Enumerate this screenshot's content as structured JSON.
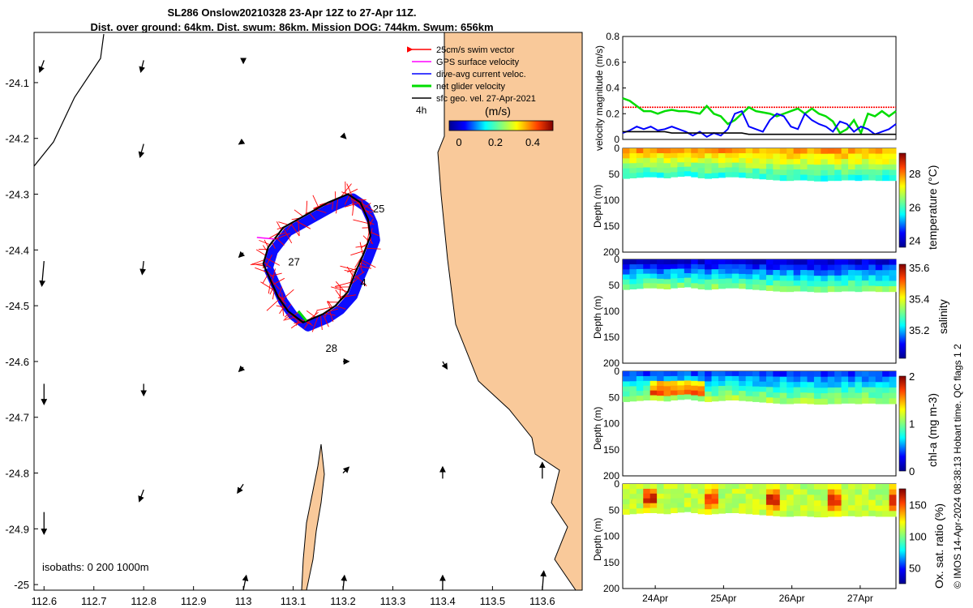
{
  "title_line1": "SL286 Onslow20210328 23-Apr 12Z to 27-Apr 11Z.",
  "title_line2": "Dist. over ground: 64km. Dist. swum: 86km. Mission DOG: 744km. Swum: 656km",
  "colors": {
    "land": "#f9c99a",
    "swim": "#ff0000",
    "gps": "#ff00ff",
    "dive_avg": "#0000ff",
    "net": "#00dd00",
    "geo": "#000000"
  },
  "chart_data": [
    {
      "type": "map",
      "xlim": [
        112.58,
        113.68
      ],
      "ylim": [
        -25.01,
        -24.01
      ],
      "xticks": [
        "112.6",
        "112.7",
        "112.8",
        "112.9",
        "113",
        "113.1",
        "113.2",
        "113.3",
        "113.4",
        "113.5",
        "113.6"
      ],
      "yticks": [
        "-24.1",
        "-24.2",
        "-24.3",
        "-24.4",
        "-24.5",
        "-24.6",
        "-24.7",
        "-24.8",
        "-24.9",
        "-25"
      ],
      "legend": [
        {
          "label": "25cm/s swim vector",
          "color": "#ff0000"
        },
        {
          "label": "GPS surface velocity",
          "color": "#ff00ff"
        },
        {
          "label": "dive-avg current veloc.",
          "color": "#0000ff"
        },
        {
          "label": "net glider velocity",
          "color": "#00dd00"
        },
        {
          "label": "sfc geo. vel. 27-Apr-2021",
          "color": "#000000"
        }
      ],
      "legend_scale_label": "4h",
      "colorbar": {
        "label": "(m/s)",
        "ticks": [
          "0",
          "0.2",
          "0.4"
        ],
        "range": [
          0,
          0.5
        ]
      },
      "isobaths_label": "isobaths: 0   200  1000m",
      "day_labels": [
        {
          "text": "25",
          "lon": 113.26,
          "lat": -24.333
        },
        {
          "text": "27",
          "lon": 113.09,
          "lat": -24.428
        },
        {
          "text": "4",
          "lon": 113.235,
          "lat": -24.465
        },
        {
          "text": "28",
          "lon": 113.165,
          "lat": -24.583
        }
      ],
      "track": [
        [
          113.04,
          -24.425
        ],
        [
          113.05,
          -24.395
        ],
        [
          113.08,
          -24.36
        ],
        [
          113.12,
          -24.34
        ],
        [
          113.17,
          -24.315
        ],
        [
          113.21,
          -24.3
        ],
        [
          113.235,
          -24.315
        ],
        [
          113.25,
          -24.345
        ],
        [
          113.255,
          -24.375
        ],
        [
          113.24,
          -24.41
        ],
        [
          113.225,
          -24.44
        ],
        [
          113.21,
          -24.475
        ],
        [
          113.185,
          -24.5
        ],
        [
          113.16,
          -24.515
        ],
        [
          113.12,
          -24.53
        ],
        [
          113.09,
          -24.51
        ],
        [
          113.07,
          -24.485
        ],
        [
          113.055,
          -24.455
        ],
        [
          113.04,
          -24.425
        ]
      ],
      "geo_vectors": [
        [
          112.6,
          -24.06,
          -0.3,
          -0.8
        ],
        [
          112.8,
          -24.06,
          -0.2,
          -0.8
        ],
        [
          113.0,
          -24.06,
          0,
          -0.2
        ],
        [
          112.8,
          -24.21,
          -0.25,
          -0.9
        ],
        [
          113.0,
          -24.205,
          -0.3,
          -0.2
        ],
        [
          113.2,
          -24.195,
          0.2,
          -0.2
        ],
        [
          112.6,
          -24.42,
          -0.15,
          -1.7
        ],
        [
          112.8,
          -24.42,
          -0.1,
          -0.9
        ],
        [
          113.0,
          -24.405,
          -0.3,
          -0.3
        ],
        [
          112.6,
          -24.64,
          0,
          -1.4
        ],
        [
          112.8,
          -24.64,
          0,
          -0.8
        ],
        [
          113.0,
          -24.61,
          -0.3,
          -0.3
        ],
        [
          113.2,
          -24.6,
          0.4,
          0
        ],
        [
          113.4,
          -24.6,
          0.3,
          -0.5
        ],
        [
          112.6,
          -24.87,
          0,
          -1.5
        ],
        [
          112.8,
          -24.83,
          -0.3,
          -0.8
        ],
        [
          113.0,
          -24.82,
          -0.4,
          -0.6
        ],
        [
          113.2,
          -24.8,
          0.4,
          0.4
        ],
        [
          113.4,
          -24.81,
          0,
          0.8
        ],
        [
          113.6,
          -24.81,
          0,
          1.1
        ],
        [
          113.0,
          -25.01,
          0.2,
          1.0
        ],
        [
          113.2,
          -25.01,
          0.1,
          1.0
        ],
        [
          113.4,
          -25.01,
          0,
          1.0
        ],
        [
          113.6,
          -25.01,
          0.1,
          1.3
        ]
      ]
    },
    {
      "type": "line",
      "ylabel": "velocity magnitude (m/s)",
      "ylim": [
        0,
        0.8
      ],
      "yticks": [
        "0",
        "0.2",
        "0.4",
        "0.6",
        "0.8"
      ],
      "series": [
        {
          "name": "swim",
          "color": "#ff0000",
          "values": [
            0.25,
            0.25,
            0.25,
            0.25,
            0.25,
            0.25,
            0.25,
            0.25,
            0.25,
            0.25,
            0.25,
            0.25,
            0.25,
            0.25,
            0.25,
            0.25,
            0.25,
            0.25,
            0.25,
            0.25,
            0.25,
            0.25,
            0.25,
            0.25,
            0.25,
            0.25,
            0.25,
            0.25,
            0.25,
            0.25,
            0.25,
            0.25,
            0.25,
            0.25,
            0.25,
            0.25,
            0.25,
            0.25,
            0.25,
            0.25
          ]
        },
        {
          "name": "net",
          "color": "#00dd00",
          "values": [
            0.32,
            0.3,
            0.26,
            0.22,
            0.22,
            0.2,
            0.22,
            0.23,
            0.22,
            0.22,
            0.21,
            0.2,
            0.26,
            0.2,
            0.18,
            0.12,
            0.15,
            0.2,
            0.25,
            0.22,
            0.21,
            0.2,
            0.18,
            0.2,
            0.22,
            0.24,
            0.2,
            0.24,
            0.2,
            0.18,
            0.14,
            0.05,
            0.08,
            0.15,
            0.05,
            0.2,
            0.18,
            0.22,
            0.18,
            0.22
          ]
        },
        {
          "name": "dive_avg",
          "color": "#0000ff",
          "values": [
            0.05,
            0.07,
            0.1,
            0.08,
            0.1,
            0.07,
            0.08,
            0.1,
            0.08,
            0.06,
            0.03,
            0.06,
            0.02,
            0.05,
            0.03,
            0.08,
            0.2,
            0.22,
            0.1,
            0.08,
            0.06,
            0.15,
            0.2,
            0.18,
            0.1,
            0.08,
            0.2,
            0.15,
            0.12,
            0.1,
            0.06,
            0.14,
            0.12,
            0.06,
            0.1,
            0.08,
            0.04,
            0.06,
            0.08,
            0.12
          ]
        },
        {
          "name": "gps",
          "color": "#000000",
          "values": [
            0.06,
            0.06,
            0.06,
            0.06,
            0.06,
            0.06,
            0.06,
            0.05,
            0.05,
            0.05,
            0.05,
            0.05,
            0.05,
            0.05,
            0.05,
            0.05,
            0.05,
            0.05,
            0.04,
            0.04,
            0.04,
            0.04,
            0.04,
            0.04,
            0.04,
            0.04,
            0.04,
            0.04,
            0.04,
            0.04,
            0.04,
            0.04,
            0.04,
            0.04,
            0.04,
            0.04,
            0.04,
            0.04,
            0.04,
            0.04
          ]
        }
      ]
    },
    {
      "type": "heatmap",
      "ylabel": "Depth (m)",
      "clabel": "temperature (°C)",
      "ylim": [
        0,
        200
      ],
      "yticks": [
        "0",
        "50",
        "100",
        "150",
        "200"
      ],
      "cticks": [
        "24",
        "26",
        "28"
      ],
      "crange": [
        23.6,
        29.2
      ],
      "mld": [
        58,
        57,
        56,
        55,
        55,
        56,
        57,
        55,
        54,
        53,
        55,
        57,
        58,
        57,
        56,
        55,
        55,
        56,
        57,
        58,
        59,
        60,
        61,
        62,
        62,
        61,
        61,
        62,
        63,
        63,
        62,
        62,
        61,
        61,
        62,
        61,
        61,
        62,
        62,
        62
      ],
      "surface_value": 27.8,
      "bottom_value": 25.8
    },
    {
      "type": "heatmap",
      "ylabel": "Depth (m)",
      "clabel": "salinity",
      "ylim": [
        0,
        200
      ],
      "yticks": [
        "0",
        "50",
        "100",
        "150",
        "200"
      ],
      "cticks": [
        "35.2",
        "35.4",
        "35.6"
      ],
      "crange": [
        35.02,
        35.62
      ],
      "mld": [
        58,
        57,
        56,
        55,
        55,
        56,
        57,
        55,
        54,
        53,
        55,
        57,
        58,
        57,
        56,
        55,
        55,
        56,
        57,
        58,
        59,
        60,
        61,
        62,
        62,
        61,
        61,
        62,
        63,
        63,
        62,
        62,
        61,
        61,
        62,
        61,
        61,
        62,
        62,
        62
      ],
      "surface_value": 35.08,
      "bottom_value": 35.32
    },
    {
      "type": "heatmap",
      "ylabel": "Depth (m)",
      "clabel": "chl-a (mg m-3)",
      "ylim": [
        0,
        200
      ],
      "yticks": [
        "0",
        "50",
        "100",
        "150",
        "200"
      ],
      "cticks": [
        "0",
        "1",
        "2"
      ],
      "crange": [
        0,
        2
      ],
      "mld": [
        58,
        57,
        56,
        55,
        55,
        56,
        57,
        55,
        54,
        53,
        55,
        57,
        58,
        57,
        56,
        55,
        55,
        56,
        57,
        58,
        59,
        60,
        61,
        62,
        62,
        61,
        61,
        62,
        63,
        63,
        62,
        62,
        61,
        61,
        62,
        61,
        61,
        62,
        62,
        62
      ],
      "surface_value": 0.4,
      "bottom_value": 1.1
    },
    {
      "type": "heatmap",
      "ylabel": "Depth (m)",
      "clabel": "Ox. sat. ratio (%)",
      "ylim": [
        0,
        200
      ],
      "yticks": [
        "0",
        "50",
        "100",
        "150",
        "200"
      ],
      "cticks": [
        "50",
        "100",
        "150"
      ],
      "crange": [
        25,
        175
      ],
      "mld": [
        58,
        57,
        56,
        55,
        55,
        56,
        57,
        55,
        54,
        53,
        55,
        57,
        58,
        57,
        56,
        55,
        55,
        56,
        57,
        58,
        59,
        60,
        61,
        62,
        62,
        61,
        61,
        62,
        63,
        63,
        62,
        62,
        61,
        61,
        62,
        61,
        61,
        62,
        62,
        62
      ],
      "surface_value": 110,
      "bottom_value": 112,
      "xticks": [
        "24Apr",
        "25Apr",
        "26Apr",
        "27Apr"
      ]
    }
  ],
  "side_note": "© IMOS 14-Apr-2024 08:38:13 Hobart time. QC flags 1  2"
}
